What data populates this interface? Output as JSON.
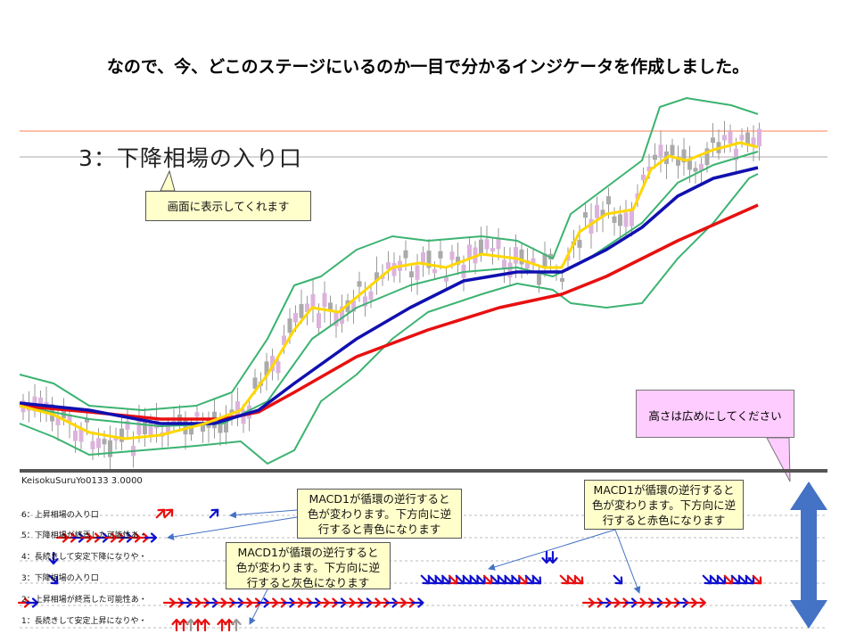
{
  "slide_title": "なので、今、どこのステージにいるのか一目で分かるインジケータを作成しました。",
  "stage_display": "3：下降相場の入り口",
  "callout_display": "画面に表示してくれます",
  "callout_height": "高さは広めにしてください",
  "indicator_name": "KeisokuSuruYo0133 3.0000",
  "rows": [
    "6：上昇相場の入り口",
    "5：下降相場が終焉した可能性あ・",
    "4：長続きして安定下降になりや・",
    "3：下降相場の入り口",
    "2：上昇相場が終焉した可能性あ・",
    "1：長続きして安定上昇になりや・"
  ],
  "callout_blue": [
    "MACD1が循環の逆行すると",
    "色が変わります。下方向に逆",
    "行すると青色になります"
  ],
  "callout_gray": [
    "MACD1が循環の逆行すると",
    "色が変わります。下方向に逆",
    "行すると灰色になります"
  ],
  "callout_red": [
    "MACD1が循環の逆行すると",
    "色が変わります。下方向に逆",
    "行すると赤色になります"
  ],
  "colors": {
    "ma_red": "#e81010",
    "ma_blue": "#1010b0",
    "ma_yellow": "#ffd700",
    "bollinger": "#3cb371",
    "resistance": "#ff7f50",
    "callout": "#ffffcc",
    "note": "#ffccff",
    "height_arrow": "#4472c4"
  }
}
